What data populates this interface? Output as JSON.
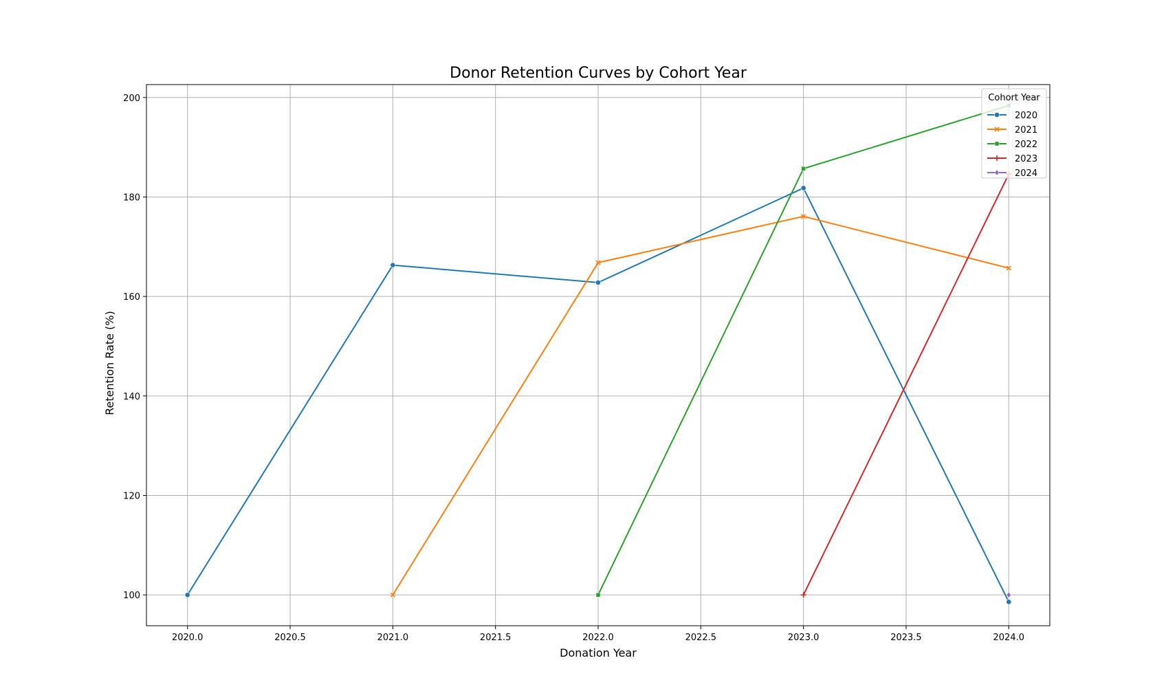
{
  "chart_data": {
    "type": "line",
    "title": "Donor Retention Curves by Cohort Year",
    "xlabel": "Donation Year",
    "ylabel": "Retention Rate (%)",
    "xlim": [
      1979.8,
      2024.2
    ],
    "ylim": [
      93.8,
      202.6
    ],
    "x_ticks": [
      2020.0,
      2020.5,
      2021.0,
      2021.5,
      2022.0,
      2022.5,
      2023.0,
      2023.5,
      2024.0
    ],
    "x_tick_labels": [
      "2020.0",
      "2020.5",
      "2021.0",
      "2021.5",
      "2022.0",
      "2022.5",
      "2023.0",
      "2023.5",
      "2024.0"
    ],
    "y_ticks": [
      100,
      120,
      140,
      160,
      180,
      200
    ],
    "y_tick_labels": [
      "100",
      "120",
      "140",
      "160",
      "180",
      "200"
    ],
    "grid": true,
    "legend": {
      "title": "Cohort Year",
      "placement": "top-right"
    },
    "series": [
      {
        "name": "2020",
        "color": "#1f77b4",
        "marker": "circle",
        "x": [
          2020,
          2021,
          2022,
          2023,
          2024
        ],
        "y": [
          100,
          166.3,
          162.8,
          181.8,
          98.6
        ]
      },
      {
        "name": "2021",
        "color": "#ff7f0e",
        "marker": "x",
        "x": [
          2021,
          2022,
          2023,
          2024
        ],
        "y": [
          100,
          166.8,
          176.1,
          165.7
        ]
      },
      {
        "name": "2022",
        "color": "#2ca02c",
        "marker": "square",
        "x": [
          2022,
          2023,
          2024
        ],
        "y": [
          100,
          185.7,
          198.4
        ]
      },
      {
        "name": "2023",
        "color": "#d62728",
        "marker": "plus",
        "x": [
          2023,
          2024
        ],
        "y": [
          100,
          184.6
        ]
      },
      {
        "name": "2024",
        "color": "#9467bd",
        "marker": "diamond",
        "x": [
          2024
        ],
        "y": [
          100
        ]
      }
    ]
  }
}
